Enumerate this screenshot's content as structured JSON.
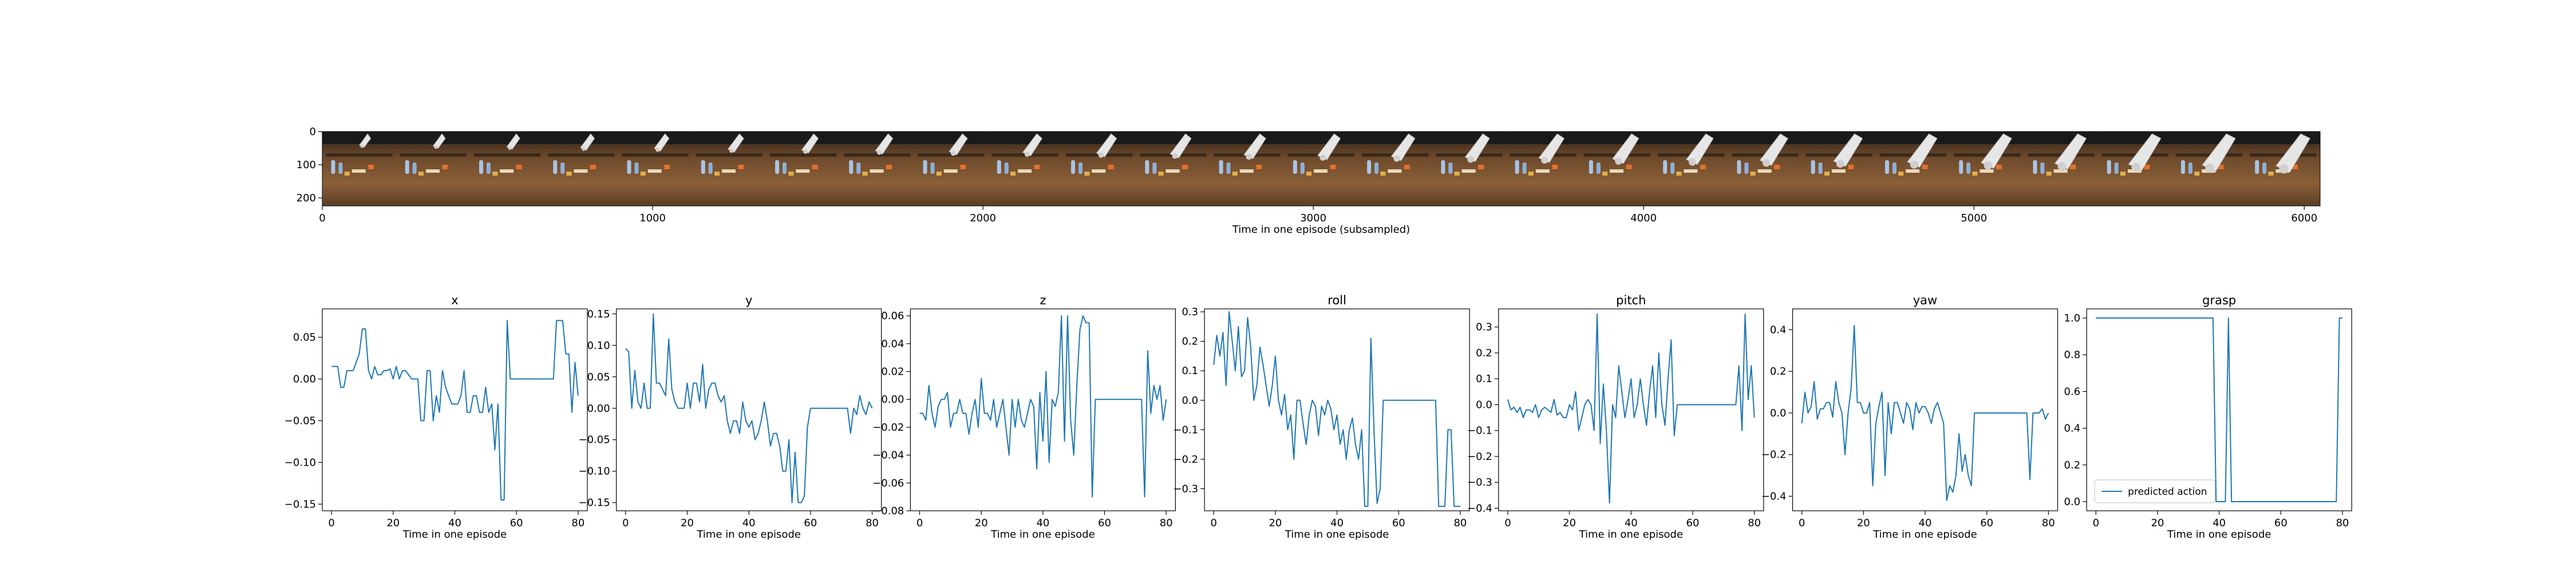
{
  "chart_data": [
    {
      "type": "image-strip",
      "xlabel": "Time in one episode (subsampled)",
      "x_ticks": [
        0,
        1000,
        2000,
        3000,
        4000,
        5000,
        6000
      ],
      "y_ticks": [
        0,
        100,
        200
      ],
      "xlim": [
        0,
        6048
      ],
      "ylim": [
        224,
        0
      ],
      "frames": 27
    },
    {
      "type": "line",
      "title": "x",
      "xlabel": "Time in one episode",
      "xlim": [
        -3,
        83
      ],
      "ylim": [
        -0.158,
        0.084
      ],
      "x_ticks": [
        0,
        20,
        40,
        60,
        80
      ],
      "y_ticks": [
        0.05,
        0.0,
        -0.05,
        -0.1,
        -0.15
      ],
      "y_tick_labels": [
        "0.05",
        "0.00",
        "−0.05",
        "−0.10",
        "−0.15"
      ],
      "series": [
        {
          "color": "#1f77b4",
          "values": [
            0.015,
            0.015,
            0.015,
            -0.01,
            -0.01,
            0.01,
            0.01,
            0.01,
            0.02,
            0.03,
            0.06,
            0.06,
            0.01,
            0.0,
            0.015,
            0.005,
            0.005,
            0.01,
            0.01,
            0.012,
            0.0,
            0.015,
            0.0,
            0.01,
            0.01,
            0.005,
            0.0,
            0.0,
            0.0,
            -0.05,
            -0.05,
            0.01,
            0.01,
            -0.05,
            -0.02,
            -0.04,
            0.01,
            -0.01,
            -0.02,
            -0.03,
            -0.03,
            -0.03,
            -0.02,
            0.01,
            -0.04,
            -0.04,
            -0.02,
            -0.02,
            -0.04,
            -0.04,
            -0.01,
            -0.04,
            -0.03,
            -0.085,
            -0.03,
            -0.145,
            -0.145,
            0.07,
            0.0,
            0.0,
            0.0,
            0.0,
            0.0,
            0.0,
            0.0,
            0.0,
            0.0,
            0.0,
            0.0,
            0.0,
            0.0,
            0.0,
            0.0,
            0.07,
            0.07,
            0.07,
            0.03,
            0.03,
            -0.04,
            0.02,
            -0.02
          ]
        }
      ]
    },
    {
      "type": "line",
      "title": "y",
      "xlabel": "Time in one episode",
      "xlim": [
        -3,
        83
      ],
      "ylim": [
        -0.163,
        0.158
      ],
      "x_ticks": [
        0,
        20,
        40,
        60,
        80
      ],
      "y_ticks": [
        0.15,
        0.1,
        0.05,
        0.0,
        -0.05,
        -0.1,
        -0.15
      ],
      "y_tick_labels": [
        "0.15",
        "0.10",
        "0.05",
        "0.00",
        "−0.05",
        "−0.10",
        "−0.15"
      ],
      "series": [
        {
          "color": "#1f77b4",
          "values": [
            0.095,
            0.09,
            0.0,
            0.06,
            0.01,
            0.0,
            0.04,
            0.0,
            0.0,
            0.15,
            0.04,
            0.04,
            0.03,
            0.02,
            0.11,
            0.03,
            0.01,
            0.0,
            0.0,
            0.0,
            0.04,
            0.0,
            0.04,
            0.04,
            0.01,
            0.07,
            0.0,
            0.03,
            0.04,
            0.04,
            0.02,
            0.01,
            0.02,
            -0.02,
            -0.04,
            -0.02,
            -0.02,
            -0.04,
            0.01,
            -0.02,
            -0.03,
            -0.02,
            -0.05,
            -0.04,
            -0.02,
            0.01,
            -0.02,
            -0.06,
            -0.04,
            -0.04,
            -0.06,
            -0.1,
            -0.1,
            -0.05,
            -0.15,
            -0.07,
            -0.15,
            -0.15,
            -0.14,
            -0.03,
            0.0,
            0.0,
            0.0,
            0.0,
            0.0,
            0.0,
            0.0,
            0.0,
            0.0,
            0.0,
            0.0,
            0.0,
            0.0,
            -0.04,
            0.0,
            -0.01,
            0.02,
            0.0,
            -0.01,
            0.01,
            0.0
          ]
        }
      ]
    },
    {
      "type": "line",
      "title": "z",
      "xlabel": "Time in one episode",
      "xlim": [
        -3,
        83
      ],
      "ylim": [
        -0.08,
        0.065
      ],
      "x_ticks": [
        0,
        20,
        40,
        60,
        80
      ],
      "y_ticks": [
        0.06,
        0.04,
        0.02,
        0.0,
        -0.02,
        -0.04,
        -0.06,
        -0.08
      ],
      "y_tick_labels": [
        "0.06",
        "0.04",
        "0.02",
        "0.00",
        "−0.02",
        "−0.04",
        "−0.06",
        "−0.08"
      ],
      "series": [
        {
          "color": "#1f77b4",
          "values": [
            -0.01,
            -0.01,
            -0.015,
            0.01,
            -0.01,
            -0.02,
            -0.005,
            0.0,
            0.0,
            0.005,
            -0.02,
            -0.01,
            -0.01,
            0.0,
            -0.01,
            -0.01,
            -0.025,
            -0.01,
            0.0,
            -0.02,
            0.015,
            -0.01,
            -0.01,
            -0.015,
            0.0,
            -0.02,
            -0.01,
            0.0,
            -0.02,
            -0.04,
            0.0,
            -0.02,
            0.0,
            -0.015,
            -0.02,
            -0.01,
            0.0,
            -0.005,
            -0.05,
            0.005,
            -0.03,
            0.02,
            -0.045,
            0.0,
            -0.005,
            0.005,
            0.06,
            -0.03,
            0.06,
            -0.015,
            -0.04,
            0.01,
            0.05,
            0.06,
            0.055,
            0.055,
            -0.07,
            0.0,
            0.0,
            0.0,
            0.0,
            0.0,
            0.0,
            0.0,
            0.0,
            0.0,
            0.0,
            0.0,
            0.0,
            0.0,
            0.0,
            0.0,
            0.0,
            -0.07,
            0.035,
            -0.01,
            0.01,
            0.0,
            0.01,
            -0.015,
            0.0
          ]
        }
      ]
    },
    {
      "type": "line",
      "title": "roll",
      "xlabel": "Time in one episode",
      "xlim": [
        -3,
        83
      ],
      "ylim": [
        -0.375,
        0.31
      ],
      "x_ticks": [
        0,
        20,
        40,
        60,
        80
      ],
      "y_ticks": [
        0.3,
        0.2,
        0.1,
        0.0,
        -0.1,
        -0.2,
        -0.3
      ],
      "y_tick_labels": [
        "0.3",
        "0.2",
        "0.1",
        "0.0",
        "−0.1",
        "−0.2",
        "−0.3"
      ],
      "series": [
        {
          "color": "#1f77b4",
          "values": [
            0.12,
            0.22,
            0.15,
            0.23,
            0.05,
            0.3,
            0.2,
            0.1,
            0.25,
            0.08,
            0.1,
            0.28,
            0.18,
            0.0,
            0.05,
            0.18,
            0.12,
            0.05,
            -0.02,
            0.05,
            0.15,
            0.0,
            -0.05,
            0.02,
            -0.1,
            -0.05,
            -0.2,
            0.0,
            0.0,
            -0.08,
            -0.15,
            -0.05,
            0.0,
            -0.02,
            -0.12,
            -0.02,
            -0.05,
            0.0,
            -0.03,
            -0.1,
            -0.05,
            -0.15,
            -0.1,
            -0.2,
            -0.1,
            -0.06,
            -0.15,
            -0.2,
            -0.1,
            -0.36,
            -0.36,
            0.21,
            -0.1,
            -0.35,
            -0.3,
            0.0,
            0.0,
            0.0,
            0.0,
            0.0,
            0.0,
            0.0,
            0.0,
            0.0,
            0.0,
            0.0,
            0.0,
            0.0,
            0.0,
            0.0,
            0.0,
            0.0,
            0.0,
            -0.36,
            -0.36,
            -0.36,
            -0.1,
            -0.1,
            -0.36,
            -0.36,
            -0.36
          ]
        }
      ]
    },
    {
      "type": "line",
      "title": "pitch",
      "xlabel": "Time in one episode",
      "xlim": [
        -3,
        83
      ],
      "ylim": [
        -0.41,
        0.37
      ],
      "x_ticks": [
        0,
        20,
        40,
        60,
        80
      ],
      "y_ticks": [
        0.3,
        0.2,
        0.1,
        0.0,
        -0.1,
        -0.2,
        -0.3,
        -0.4
      ],
      "y_tick_labels": [
        "0.3",
        "0.2",
        "0.1",
        "0.0",
        "−0.1",
        "−0.2",
        "−0.3",
        "−0.4"
      ],
      "series": [
        {
          "color": "#1f77b4",
          "values": [
            0.02,
            -0.02,
            -0.01,
            -0.03,
            -0.01,
            -0.05,
            -0.02,
            -0.02,
            -0.03,
            0.0,
            -0.05,
            -0.02,
            -0.01,
            -0.02,
            -0.03,
            0.02,
            -0.04,
            -0.03,
            -0.05,
            -0.05,
            0.0,
            -0.02,
            0.05,
            -0.1,
            -0.05,
            0.0,
            0.02,
            0.0,
            -0.1,
            0.35,
            -0.15,
            0.08,
            -0.1,
            -0.38,
            0.0,
            -0.05,
            0.15,
            0.05,
            -0.05,
            0.02,
            0.1,
            -0.05,
            0.0,
            0.1,
            0.0,
            -0.08,
            0.05,
            0.15,
            -0.05,
            0.2,
            0.0,
            -0.08,
            0.1,
            0.25,
            -0.12,
            0.0,
            0.0,
            0.0,
            0.0,
            0.0,
            0.0,
            0.0,
            0.0,
            0.0,
            0.0,
            0.0,
            0.0,
            0.0,
            0.0,
            0.0,
            0.0,
            0.0,
            0.0,
            0.0,
            0.0,
            0.15,
            -0.1,
            0.35,
            0.02,
            0.15,
            -0.05
          ]
        }
      ]
    },
    {
      "type": "line",
      "title": "yaw",
      "xlabel": "Time in one episode",
      "xlim": [
        -3,
        83
      ],
      "ylim": [
        -0.47,
        0.5
      ],
      "x_ticks": [
        0,
        20,
        40,
        60,
        80
      ],
      "y_ticks": [
        0.4,
        0.2,
        0.0,
        -0.2,
        -0.4
      ],
      "y_tick_labels": [
        "0.4",
        "0.2",
        "0.0",
        "−0.2",
        "−0.4"
      ],
      "series": [
        {
          "color": "#1f77b4",
          "values": [
            -0.05,
            0.1,
            0.0,
            0.03,
            0.15,
            -0.03,
            0.02,
            0.02,
            0.05,
            0.05,
            -0.02,
            0.15,
            0.05,
            0.0,
            -0.2,
            0.0,
            0.12,
            0.42,
            0.05,
            0.05,
            0.0,
            0.0,
            0.05,
            -0.35,
            -0.05,
            0.03,
            0.1,
            -0.3,
            0.05,
            -0.1,
            0.05,
            0.05,
            0.0,
            -0.05,
            0.05,
            0.02,
            -0.08,
            0.05,
            0.0,
            0.03,
            0.03,
            0.0,
            -0.05,
            0.02,
            0.05,
            0.0,
            -0.05,
            -0.42,
            -0.35,
            -0.38,
            -0.3,
            -0.1,
            -0.28,
            -0.2,
            -0.3,
            -0.35,
            0.0,
            0.0,
            0.0,
            0.0,
            0.0,
            0.0,
            0.0,
            0.0,
            0.0,
            0.0,
            0.0,
            0.0,
            0.0,
            0.0,
            0.0,
            0.0,
            0.0,
            0.0,
            -0.32,
            0.0,
            0.0,
            0.0,
            0.02,
            -0.03,
            0.0
          ]
        }
      ]
    },
    {
      "type": "line",
      "title": "grasp",
      "xlabel": "Time in one episode",
      "xlim": [
        -3,
        83
      ],
      "ylim": [
        -0.05,
        1.05
      ],
      "x_ticks": [
        0,
        20,
        40,
        60,
        80
      ],
      "y_ticks": [
        0.0,
        0.2,
        0.4,
        0.6,
        0.8,
        1.0
      ],
      "y_tick_labels": [
        "0.0",
        "0.2",
        "0.4",
        "0.6",
        "0.8",
        "1.0"
      ],
      "legend": {
        "label": "predicted action",
        "position": "lower-left"
      },
      "series": [
        {
          "name": "predicted action",
          "color": "#1f77b4",
          "values": [
            1,
            1,
            1,
            1,
            1,
            1,
            1,
            1,
            1,
            1,
            1,
            1,
            1,
            1,
            1,
            1,
            1,
            1,
            1,
            1,
            1,
            1,
            1,
            1,
            1,
            1,
            1,
            1,
            1,
            1,
            1,
            1,
            1,
            1,
            1,
            1,
            1,
            1,
            1,
            0,
            0,
            0,
            0,
            1,
            0,
            0,
            0,
            0,
            0,
            0,
            0,
            0,
            0,
            0,
            0,
            0,
            0,
            0,
            0,
            0,
            0,
            0,
            0,
            0,
            0,
            0,
            0,
            0,
            0,
            0,
            0,
            0,
            0,
            0,
            0,
            0,
            0,
            0,
            0,
            1,
            1
          ]
        }
      ]
    }
  ]
}
